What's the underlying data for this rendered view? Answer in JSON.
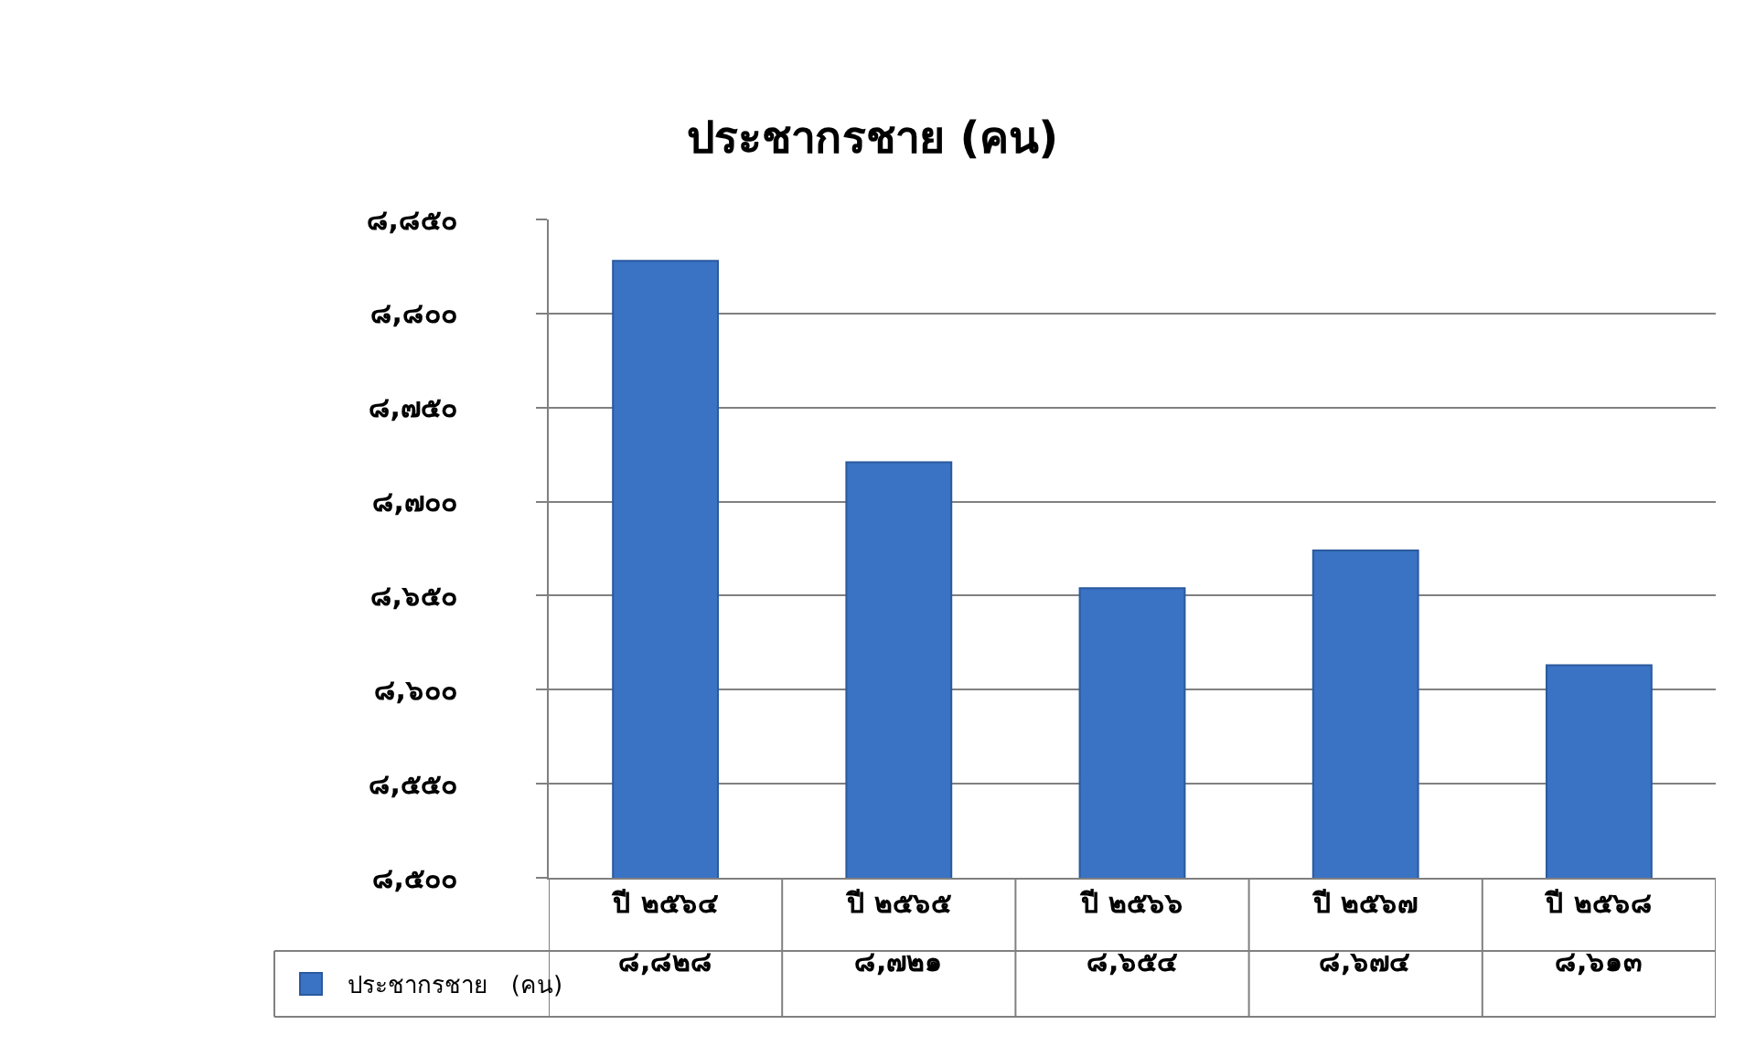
{
  "chart_data": {
    "type": "bar",
    "title": "ประชากรชาย (คน)",
    "categories": [
      "ปี ๒๕๖๔",
      "ปี ๒๕๖๕",
      "ปี ๒๕๖๖",
      "ปี ๒๕๖๗",
      "ปี ๒๕๖๘"
    ],
    "series": [
      {
        "name": "ประชากรชาย   (คน)",
        "color": "#3a72c4",
        "values": [
          8828,
          8721,
          8654,
          8674,
          8613
        ],
        "value_labels": [
          "๘,๘๒๘",
          "๘,๗๒๑",
          "๘,๖๕๔",
          "๘,๖๗๔",
          "๘,๖๑๓"
        ]
      }
    ],
    "ylim": [
      8500,
      8850
    ],
    "yticks": [
      {
        "value": 8500,
        "label": "๘,๕๐๐"
      },
      {
        "value": 8550,
        "label": "๘,๕๕๐"
      },
      {
        "value": 8600,
        "label": "๘,๖๐๐"
      },
      {
        "value": 8650,
        "label": "๘,๖๕๐"
      },
      {
        "value": 8700,
        "label": "๘,๗๐๐"
      },
      {
        "value": 8750,
        "label": "๘,๗๕๐"
      },
      {
        "value": 8800,
        "label": "๘,๘๐๐"
      },
      {
        "value": 8850,
        "label": "๘,๘๕๐"
      }
    ],
    "grid": "y",
    "data_labels": true,
    "legend": "bottom left"
  }
}
